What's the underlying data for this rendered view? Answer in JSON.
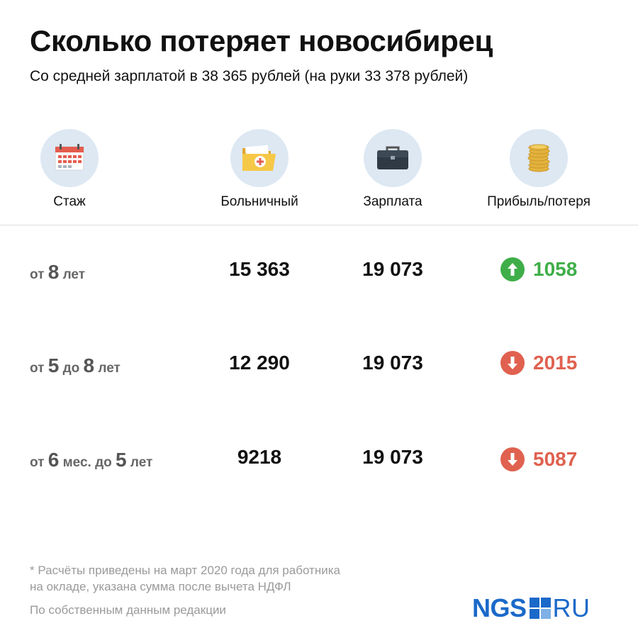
{
  "title": "Сколько потеряет новосибирец",
  "subtitle": "Со средней зарплатой в 38 365 рублей (на руки 33 378 рублей)",
  "columns": {
    "stazh": {
      "label": "Стаж",
      "icon": "calendar-icon"
    },
    "sick": {
      "label": "Больничный",
      "icon": "medical-folder-icon"
    },
    "salary": {
      "label": "Зарплата",
      "icon": "briefcase-icon"
    },
    "profit": {
      "label": "Прибыль/потеря",
      "icon": "coins-icon"
    }
  },
  "chart_data": {
    "type": "table",
    "title": "Сколько потеряет новосибирец",
    "subtitle": "Со средней зарплатой в 38 365 рублей (на руки 33 378 рублей)",
    "columns": [
      "Стаж",
      "Больничный",
      "Зарплата",
      "Прибыль/потеря"
    ],
    "rows": [
      {
        "stazh_parts": [
          {
            "t": "от ",
            "big": false
          },
          {
            "t": "8",
            "big": true
          },
          {
            "t": " лет",
            "big": false
          }
        ],
        "sick": "15 363",
        "salary": "19 073",
        "delta": "1058",
        "direction": "up",
        "color": "#3fae49"
      },
      {
        "stazh_parts": [
          {
            "t": "от ",
            "big": false
          },
          {
            "t": "5",
            "big": true
          },
          {
            "t": " до ",
            "big": false
          },
          {
            "t": "8",
            "big": true
          },
          {
            "t": " лет",
            "big": false
          }
        ],
        "sick": "12 290",
        "salary": "19 073",
        "delta": "2015",
        "direction": "down",
        "color": "#e0614f"
      },
      {
        "stazh_parts": [
          {
            "t": "от ",
            "big": false
          },
          {
            "t": "6",
            "big": true
          },
          {
            "t": " мес. до ",
            "big": false
          },
          {
            "t": "5",
            "big": true
          },
          {
            "t": " лет",
            "big": false
          }
        ],
        "sick": "9218",
        "salary": "19 073",
        "delta": "5087",
        "direction": "down",
        "color": "#e0614f"
      }
    ]
  },
  "note_lines": [
    "* Расчёты приведены на март 2020 года для работника",
    "на окладе, указана сумма после вычета НДФЛ"
  ],
  "source": "По собственным данным редакции",
  "logo": {
    "left": "NGS",
    "right": "RU",
    "color": "#1b69c9"
  },
  "colors": {
    "up": "#3fae49",
    "down": "#e0614f",
    "icon_bg": "#dde8f3"
  }
}
